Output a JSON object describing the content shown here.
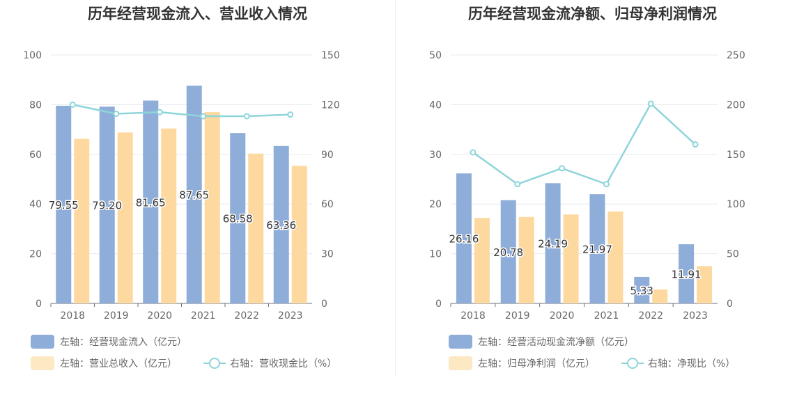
{
  "colors": {
    "bar_primary": "#8fadd9",
    "bar_secondary": "#fdd9a0",
    "line": "#8ed5da",
    "grid": "#e6e8ef",
    "axis_text": "#666666",
    "title": "#333333"
  },
  "chart_data": [
    {
      "type": "bar",
      "title": "历年经营现金流入、营业收入情况",
      "categories": [
        "2018",
        "2019",
        "2020",
        "2021",
        "2022",
        "2023"
      ],
      "left_axis": {
        "ylim": [
          0,
          100
        ],
        "ticks": [
          "0",
          "20",
          "40",
          "60",
          "80",
          "100"
        ]
      },
      "right_axis": {
        "ylim": [
          0,
          150
        ],
        "ticks": [
          "0",
          "30",
          "60",
          "90",
          "120",
          "150"
        ]
      },
      "grid": true,
      "legend_position": "bottom",
      "series": [
        {
          "name": "左轴：经营现金流入（亿元）",
          "kind": "bar",
          "axis": "left",
          "values": [
            79.55,
            79.2,
            81.65,
            87.65,
            68.58,
            63.36
          ],
          "labels": [
            "79.55",
            "79.20",
            "81.65",
            "87.65",
            "68.58",
            "63.36"
          ]
        },
        {
          "name": "左轴：营业总收入（亿元）",
          "kind": "bar",
          "axis": "left",
          "values": [
            66.2,
            68.8,
            70.4,
            77.0,
            60.3,
            55.4
          ]
        },
        {
          "name": "右轴：营收现金比（%）",
          "kind": "line",
          "axis": "right",
          "values": [
            120.0,
            114.5,
            115.5,
            113.0,
            113.0,
            114.0
          ]
        }
      ]
    },
    {
      "type": "bar",
      "title": "历年经营现金流净额、归母净利润情况",
      "categories": [
        "2018",
        "2019",
        "2020",
        "2021",
        "2022",
        "2023"
      ],
      "left_axis": {
        "ylim": [
          0,
          50
        ],
        "ticks": [
          "0",
          "10",
          "20",
          "30",
          "40",
          "50"
        ]
      },
      "right_axis": {
        "ylim": [
          0,
          250
        ],
        "ticks": [
          "0",
          "50",
          "100",
          "150",
          "200",
          "250"
        ]
      },
      "grid": true,
      "legend_position": "bottom",
      "series": [
        {
          "name": "左轴：经营活动现金流净额（亿元）",
          "kind": "bar",
          "axis": "left",
          "values": [
            26.16,
            20.78,
            24.19,
            21.97,
            5.33,
            11.91
          ],
          "labels": [
            "26.16",
            "20.78",
            "24.19",
            "21.97",
            "5.33",
            "11.91"
          ]
        },
        {
          "name": "左轴：归母净利润（亿元）",
          "kind": "bar",
          "axis": "left",
          "values": [
            17.2,
            17.4,
            17.9,
            18.5,
            2.8,
            7.5
          ]
        },
        {
          "name": "右轴：净现比（%）",
          "kind": "line",
          "axis": "right",
          "values": [
            152.0,
            120.0,
            136.0,
            120.0,
            201.0,
            160.0
          ]
        }
      ]
    }
  ]
}
